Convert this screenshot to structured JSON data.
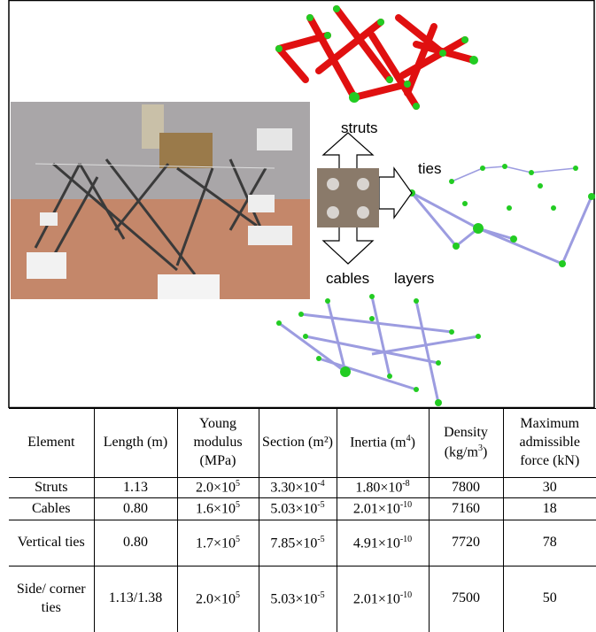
{
  "figure": {
    "labels": [
      "struts",
      "ties",
      "cables",
      "layers"
    ]
  },
  "table": {
    "header": [
      [
        "Element"
      ],
      [
        "Length (m)"
      ],
      [
        "Young modulus (MPa)"
      ],
      [
        "Section (m²)"
      ],
      [
        "Inertia (m",
        {
          "sup": "4"
        },
        ")"
      ],
      [
        "Density (kg/m",
        {
          "sup": "3"
        },
        ")"
      ],
      [
        "Maximum admissible force (kN)"
      ]
    ],
    "rows": [
      [
        [
          "Struts"
        ],
        [
          "1.13"
        ],
        [
          "2.0×10",
          {
            "sup": "5"
          }
        ],
        [
          "3.30×10",
          {
            "sup": "-4"
          }
        ],
        [
          "1.80×10",
          {
            "sup": "-8"
          }
        ],
        [
          "7800"
        ],
        [
          "30"
        ]
      ],
      [
        [
          "Cables"
        ],
        [
          "0.80"
        ],
        [
          "1.6×10",
          {
            "sup": "5"
          }
        ],
        [
          "5.03×10",
          {
            "sup": "-5"
          }
        ],
        [
          "2.01×10",
          {
            "sup": "-10"
          }
        ],
        [
          "7160"
        ],
        [
          "18"
        ]
      ],
      [
        [
          "Vertical ties"
        ],
        [
          "0.80"
        ],
        [
          "1.7×10",
          {
            "sup": "5"
          }
        ],
        [
          "7.85×10",
          {
            "sup": "-5"
          }
        ],
        [
          "4.91×10",
          {
            "sup": "-10"
          }
        ],
        [
          "7720"
        ],
        [
          "78"
        ]
      ],
      [
        [
          "Side/ corner ties"
        ],
        [
          "1.13/1.38"
        ],
        [
          "2.0×10",
          {
            "sup": "5"
          }
        ],
        [
          "5.03×10",
          {
            "sup": "-5"
          }
        ],
        [
          "2.01×10",
          {
            "sup": "-10"
          }
        ],
        [
          "7500"
        ],
        [
          "50"
        ]
      ]
    ]
  }
}
